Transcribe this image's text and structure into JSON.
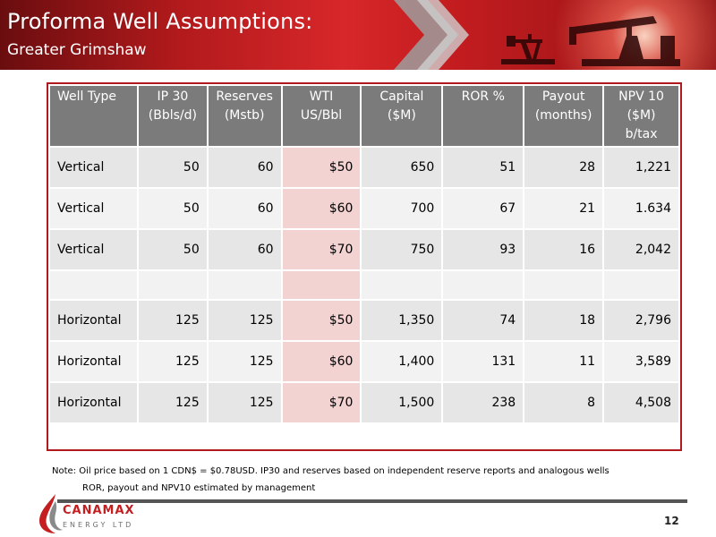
{
  "title": {
    "line1": "Proforma Well Assumptions:",
    "line2": "Greater Grimshaw"
  },
  "table": {
    "headers": [
      [
        "Well Type"
      ],
      [
        "IP 30",
        "(Bbls/d)"
      ],
      [
        "Reserves",
        "(Mstb)"
      ],
      [
        "WTI",
        "US/Bbl"
      ],
      [
        "Capital",
        "($M)"
      ],
      [
        "ROR %"
      ],
      [
        "Payout",
        "(months)"
      ],
      [
        "NPV 10",
        "($M)",
        "b/tax"
      ]
    ],
    "rows": [
      [
        "Vertical",
        "50",
        "60",
        "$50",
        "650",
        "51",
        "28",
        "1,221"
      ],
      [
        "Vertical",
        "50",
        "60",
        "$60",
        "700",
        "67",
        "21",
        "1.634"
      ],
      [
        "Vertical",
        "50",
        "60",
        "$70",
        "750",
        "93",
        "16",
        "2,042"
      ],
      [
        "",
        "",
        "",
        "",
        "",
        "",
        "",
        ""
      ],
      [
        "Horizontal",
        "125",
        "125",
        "$50",
        "1,350",
        "74",
        "18",
        "2,796"
      ],
      [
        "Horizontal",
        "125",
        "125",
        "$60",
        "1,400",
        "131",
        "11",
        "3,589"
      ],
      [
        "Horizontal",
        "125",
        "125",
        "$70",
        "1,500",
        "238",
        "8",
        "4,508"
      ]
    ]
  },
  "footnote": {
    "line1": "Note: Oil price based on 1 CDN$ = $0.78USD.  IP30 and reserves based on independent reserve reports and analogous wells",
    "line2": "ROR, payout and NPV10 estimated by management"
  },
  "logo": {
    "name": "CANAMAX",
    "sub": "ENERGY LTD"
  },
  "page_number": "12",
  "colors": {
    "banner_red": "#c51d20",
    "header_gray": "#7b7b7b",
    "wti_highlight": "#f3d2d2",
    "table_border": "#b01a1c"
  }
}
